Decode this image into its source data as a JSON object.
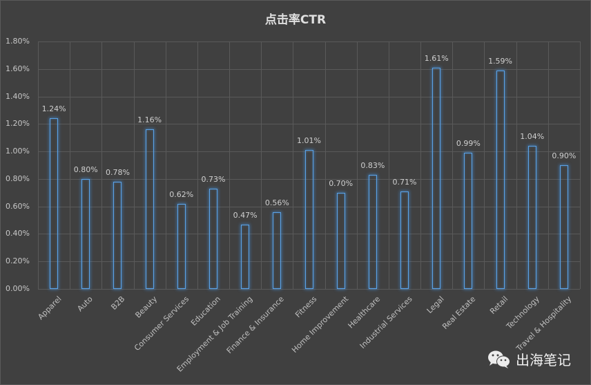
{
  "chart_data": {
    "type": "bar",
    "title": "点击率CTR",
    "xlabel": "",
    "ylabel": "",
    "ylim": [
      0,
      0.018
    ],
    "yticks": [
      "0.00%",
      "0.20%",
      "0.40%",
      "0.60%",
      "0.80%",
      "1.00%",
      "1.20%",
      "1.40%",
      "1.60%",
      "1.80%"
    ],
    "grid": true,
    "legend": "none",
    "categories": [
      "Apparel",
      "Auto",
      "B2B",
      "Beauty",
      "Consumer Services",
      "Education",
      "Employment & Job Training",
      "Finance & Insurance",
      "Fitness",
      "Home Improvement",
      "Healthcare",
      "Industrial Services",
      "Legal",
      "Real Estate",
      "Retail",
      "Technology",
      "Travel & Hospitality"
    ],
    "values": [
      1.24,
      0.8,
      0.78,
      1.16,
      0.62,
      0.73,
      0.47,
      0.56,
      1.01,
      0.7,
      0.83,
      0.71,
      1.61,
      0.99,
      1.59,
      1.04,
      0.9
    ],
    "value_unit": "%",
    "data_labels": [
      "1.24%",
      "0.80%",
      "0.78%",
      "1.16%",
      "0.62%",
      "0.73%",
      "0.47%",
      "0.56%",
      "1.01%",
      "0.70%",
      "0.83%",
      "0.71%",
      "1.61%",
      "0.99%",
      "1.59%",
      "1.04%",
      "0.90%"
    ],
    "colors": {
      "bar_outline": "#5ba3e8",
      "background": "#404040",
      "grid": "#5a5a5a",
      "text": "#d0d0d0"
    }
  },
  "watermark": {
    "icon": "wechat-icon",
    "text": "出海笔记"
  }
}
